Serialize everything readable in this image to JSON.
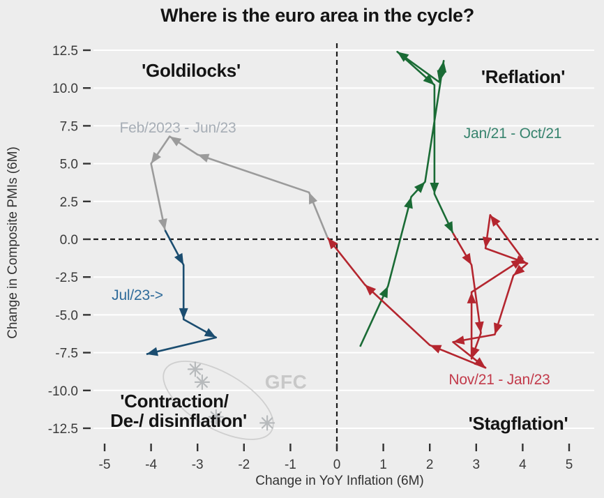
{
  "chart_data": {
    "type": "scatter",
    "title": "Where is the euro area in the cycle?",
    "xlabel": "Change in YoY Inflation (6M)",
    "ylabel": "Change in Composite PMIs (6M)",
    "background": "#ededed",
    "grid_color": "#ffffff",
    "zero_line_color": "#1b1b1b",
    "grid": "horizontal-only",
    "legend_position": "none",
    "xlim": [
      -5.3,
      5.7
    ],
    "ylim": [
      -13.5,
      13.1
    ],
    "x_tick_labels": [
      "-5",
      "-4",
      "-3",
      "-2",
      "-1",
      "0",
      "1",
      "2",
      "3",
      "4",
      "5"
    ],
    "x_tick_values": [
      -5,
      -4,
      -3,
      -2,
      -1,
      0,
      1,
      2,
      3,
      4,
      5
    ],
    "y_tick_labels": [
      "12.5",
      "10.0",
      "7.5",
      "5.0",
      "2.5",
      "0.0",
      "-2.5",
      "-5.0",
      "-7.5",
      "-10.0",
      "-12.5"
    ],
    "y_tick_values": [
      12.5,
      10,
      7.5,
      5,
      2.5,
      0,
      -2.5,
      -5,
      -7.5,
      -10,
      -12.5
    ],
    "quadrant_labels": {
      "top_left": "'Goldilocks'",
      "top_right": "'Reflation'",
      "bottom_left_line1": "'Contraction/",
      "bottom_left_line2": "De-/ disinflation'",
      "bottom_right": "'Stagflation'"
    },
    "series": [
      {
        "name": "Feb/2023 - Jun/23",
        "color": "#9b9b9b",
        "label_color": "#a7aeb6",
        "points": [
          [
            -0.2,
            0.1
          ],
          [
            -0.6,
            3.1
          ],
          [
            -3.0,
            5.6
          ],
          [
            -3.6,
            6.8
          ],
          [
            -4.0,
            5.0
          ],
          [
            -3.7,
            0.6
          ]
        ]
      },
      {
        "name": "Jul/23->",
        "color": "#1b4d70",
        "label_color": "#2f6b9a",
        "points": [
          [
            -3.7,
            0.6
          ],
          [
            -3.3,
            -1.7
          ],
          [
            -3.3,
            -5.3
          ],
          [
            -2.6,
            -6.5
          ],
          [
            -4.1,
            -7.6
          ]
        ]
      },
      {
        "name": "Jan/21 - Oct/21",
        "color": "#1a6b35",
        "label_color": "#36836d",
        "points": [
          [
            0.5,
            -7.1
          ],
          [
            1.1,
            -3.1
          ],
          [
            1.6,
            2.8
          ],
          [
            1.9,
            3.8
          ],
          [
            2.3,
            11.8
          ],
          [
            2.2,
            10.4
          ],
          [
            1.3,
            12.4
          ],
          [
            2.1,
            10.2
          ],
          [
            2.1,
            3.0
          ],
          [
            2.5,
            0.4
          ]
        ]
      },
      {
        "name": "Nov/21 - Jan/23",
        "color": "#b4262f",
        "label_color": "#c23a4a",
        "points": [
          [
            2.5,
            0.4
          ],
          [
            2.9,
            -1.7
          ],
          [
            3.1,
            -6.2
          ],
          [
            2.9,
            -7.9
          ],
          [
            2.9,
            -3.5
          ],
          [
            4.0,
            -1.3
          ],
          [
            3.3,
            1.6
          ],
          [
            3.2,
            -0.6
          ],
          [
            4.1,
            -1.6
          ],
          [
            3.8,
            -2.4
          ],
          [
            3.4,
            -6.3
          ],
          [
            2.5,
            -6.8
          ],
          [
            3.2,
            -8.5
          ],
          [
            2.0,
            -7.0
          ],
          [
            0.6,
            -3.0
          ],
          [
            -0.2,
            0.1
          ]
        ]
      }
    ],
    "gfc": {
      "label": "GFC",
      "marker": "asterisk",
      "marker_color": "#b7babc",
      "ellipse_color": "#cfcfcf",
      "points": [
        [
          -3.05,
          -8.6
        ],
        [
          -2.9,
          -9.45
        ],
        [
          -2.6,
          -11.75
        ],
        [
          -1.5,
          -12.15
        ]
      ]
    }
  }
}
